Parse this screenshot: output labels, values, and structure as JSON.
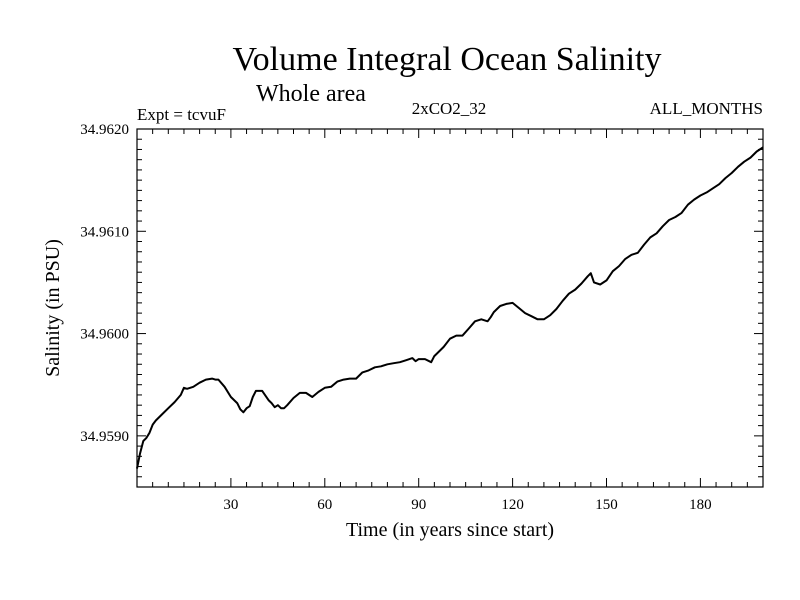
{
  "header": {
    "title": "Volume Integral Ocean Salinity",
    "subtitle": "Whole area",
    "expt": "Expt = tcvuF",
    "run": "2xCO2_32",
    "months": "ALL_MONTHS"
  },
  "chart_data": {
    "type": "line",
    "title": "Volume Integral Ocean Salinity",
    "subtitle": "Whole area",
    "xlabel": "Time (in years since start)",
    "ylabel": "Salinity (in PSU)",
    "xlim": [
      0,
      200
    ],
    "ylim": [
      34.9585,
      34.962
    ],
    "x_ticks": [
      "30",
      "60",
      "90",
      "120",
      "150",
      "180"
    ],
    "y_ticks": [
      "34.9590",
      "34.9600",
      "34.9610",
      "34.9620"
    ],
    "grid": false,
    "series": [
      {
        "x": [
          0,
          1,
          2,
          3,
          4,
          5,
          6,
          8,
          10,
          12,
          14,
          15,
          16,
          18,
          20,
          22,
          24,
          25,
          26,
          28,
          30,
          32,
          33,
          34,
          35,
          36,
          37,
          38,
          40,
          42,
          43,
          44,
          45,
          46,
          47,
          48,
          50,
          52,
          54,
          56,
          58,
          60,
          62,
          64,
          66,
          68,
          70,
          72,
          74,
          76,
          78,
          80,
          82,
          84,
          86,
          88,
          89,
          90,
          92,
          94,
          95,
          96,
          98,
          100,
          102,
          104,
          106,
          108,
          110,
          112,
          113,
          114,
          116,
          118,
          120,
          122,
          124,
          126,
          128,
          130,
          132,
          134,
          136,
          138,
          140,
          142,
          144,
          145,
          146,
          148,
          150,
          152,
          154,
          156,
          158,
          160,
          162,
          164,
          166,
          168,
          170,
          172,
          174,
          176,
          178,
          180,
          182,
          184,
          186,
          188,
          190,
          192,
          194,
          196,
          198,
          200
        ],
        "values": [
          34.95868,
          34.95883,
          34.95895,
          34.95898,
          34.95903,
          34.95911,
          34.95915,
          34.95921,
          34.95927,
          34.95933,
          34.9594,
          34.95947,
          34.95946,
          34.95948,
          34.95952,
          34.95955,
          34.95956,
          34.95955,
          34.95955,
          34.95948,
          34.95938,
          34.95932,
          34.95926,
          34.95923,
          34.95927,
          34.95929,
          34.95938,
          34.95944,
          34.95944,
          34.95935,
          34.95932,
          34.95928,
          34.9593,
          34.95927,
          34.95927,
          34.9593,
          34.95937,
          34.95942,
          34.95942,
          34.95938,
          34.95943,
          34.95947,
          34.95948,
          34.95953,
          34.95955,
          34.95956,
          34.95956,
          34.95962,
          34.95964,
          34.95967,
          34.95968,
          34.9597,
          34.95971,
          34.95972,
          34.95974,
          34.95976,
          34.95973,
          34.95975,
          34.95975,
          34.95972,
          34.95978,
          34.95981,
          34.95987,
          34.95995,
          34.95998,
          34.95998,
          34.96005,
          34.96012,
          34.96014,
          34.96012,
          34.96016,
          34.96021,
          34.96027,
          34.96029,
          34.9603,
          34.96025,
          34.9602,
          34.96017,
          34.96014,
          34.96014,
          34.96018,
          34.96024,
          34.96032,
          34.96039,
          34.96043,
          34.96049,
          34.96056,
          34.96059,
          34.9605,
          34.96048,
          34.96052,
          34.96061,
          34.96066,
          34.96073,
          34.96077,
          34.96079,
          34.96087,
          34.96094,
          34.96098,
          34.96105,
          34.96111,
          34.96114,
          34.96118,
          34.96126,
          34.96131,
          34.96135,
          34.96138,
          34.96142,
          34.96146,
          34.96152,
          34.96157,
          34.96163,
          34.96168,
          34.96172,
          34.96178,
          34.96182
        ]
      }
    ]
  }
}
